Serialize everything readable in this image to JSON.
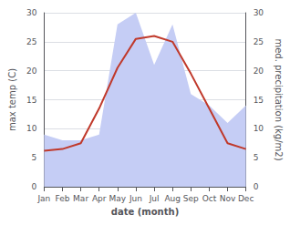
{
  "chart_data": {
    "type": "line",
    "xlabel": "date (month)",
    "ylabel": "max temp (C)",
    "y2label": "med. precipitation (kg/m2)",
    "categories": [
      "Jan",
      "Feb",
      "Mar",
      "Apr",
      "May",
      "Jun",
      "Jul",
      "Aug",
      "Sep",
      "Oct",
      "Nov",
      "Dec"
    ],
    "series": [
      {
        "type": "area",
        "axis": "y2",
        "color": "#c5cdf5",
        "values": [
          9,
          8,
          8,
          9,
          28,
          30,
          21,
          28,
          16,
          14,
          11,
          14
        ]
      },
      {
        "type": "line",
        "color": "#c0392b",
        "values": [
          6.2,
          6.5,
          7.5,
          13.5,
          20.5,
          25.5,
          26.0,
          25.0,
          19.5,
          13.5,
          7.5,
          6.5
        ]
      }
    ],
    "ylim": [
      0,
      30
    ],
    "yticks": [
      0,
      5,
      10,
      15,
      20,
      25,
      30
    ],
    "y2lim": [
      0,
      30
    ],
    "y2ticks": [
      0,
      5,
      10,
      15,
      20,
      25,
      30
    ],
    "grid": true
  }
}
